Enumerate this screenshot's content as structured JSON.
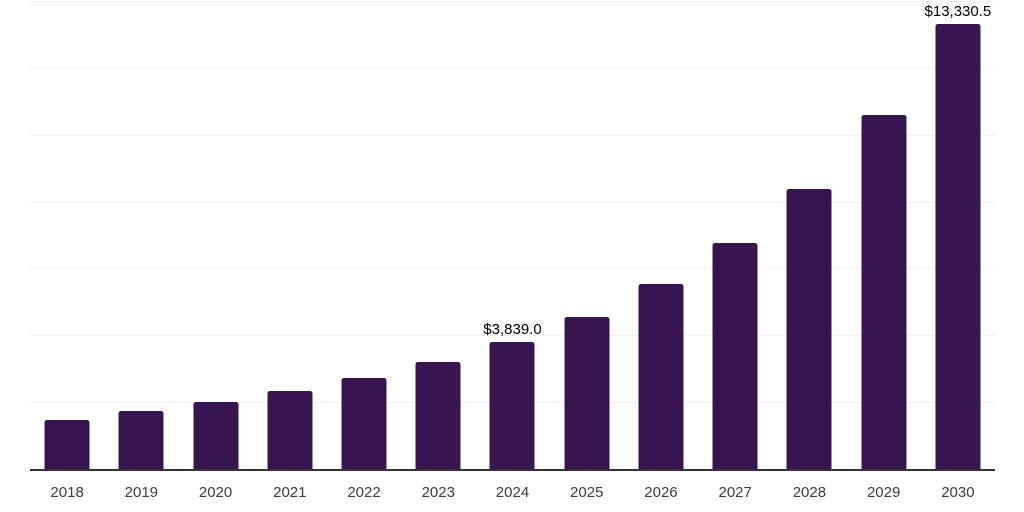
{
  "chart_data": {
    "type": "bar",
    "title": "",
    "xlabel": "",
    "ylabel": "",
    "categories": [
      "2018",
      "2019",
      "2020",
      "2021",
      "2022",
      "2023",
      "2024",
      "2025",
      "2026",
      "2027",
      "2028",
      "2029",
      "2030"
    ],
    "values": [
      1500,
      1755,
      2040,
      2350,
      2760,
      3225,
      3839.0,
      4585,
      5550,
      6795,
      8420,
      10610,
      13330.5
    ],
    "value_labels": {
      "2024": "$3,839.0",
      "2030": "$13,330.5"
    },
    "ylim": [
      0,
      14000
    ],
    "gridline_step": 2000,
    "grid": true,
    "legend_position": "none",
    "colors": {
      "bar": "#371551",
      "gridline": "#f1f1f1",
      "axis_line": "#333333",
      "tick_label": "#3d3d3d",
      "value_label": "#000000",
      "background": "#ffffff"
    }
  }
}
